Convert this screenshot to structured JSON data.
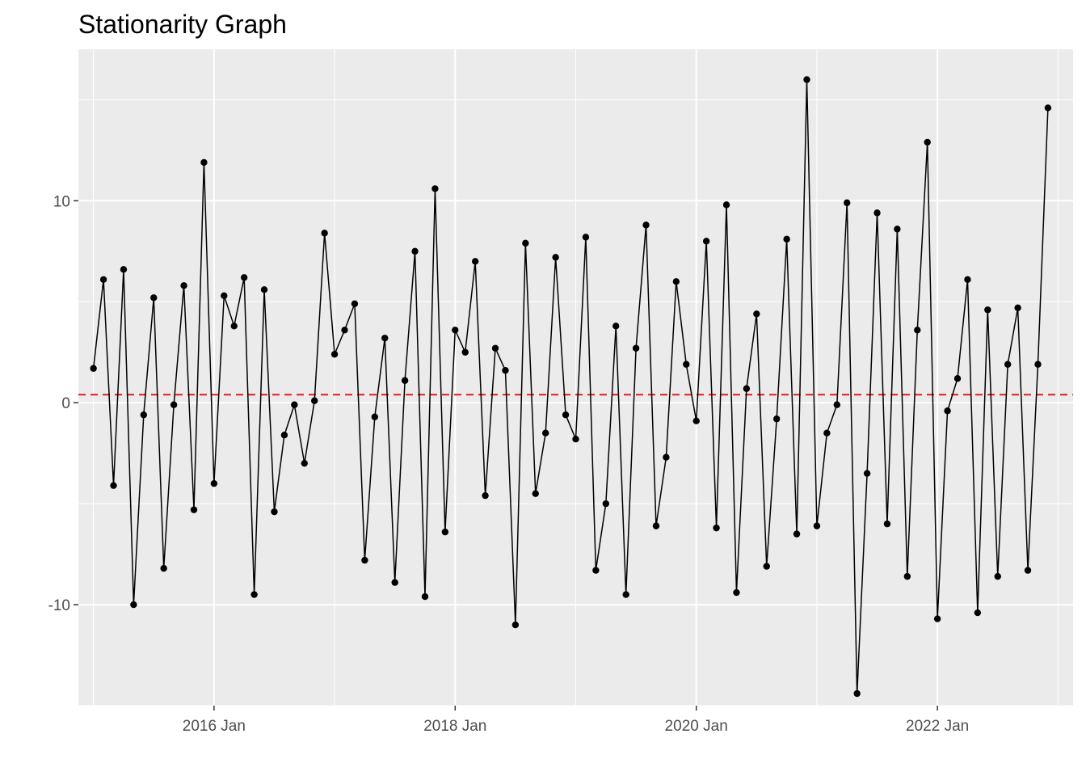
{
  "chart_data": {
    "type": "line",
    "title": "Stationarity Graph",
    "xlabel": "",
    "ylabel": "",
    "start_month": "2015-01",
    "x_ticks": [
      {
        "label": "2016 Jan",
        "month_index": 12
      },
      {
        "label": "2018 Jan",
        "month_index": 36
      },
      {
        "label": "2020 Jan",
        "month_index": 60
      },
      {
        "label": "2022 Jan",
        "month_index": 84
      }
    ],
    "y_ticks": [
      -10,
      0,
      10
    ],
    "ylim": [
      -15,
      17.5
    ],
    "xlim_months": [
      -1.5,
      97.5
    ],
    "grid": true,
    "reference_line": {
      "value": 0.4,
      "style": "dashed",
      "color": "#e41a1c"
    },
    "background": "#ebebeb",
    "series": [
      {
        "name": "value",
        "color": "#000000",
        "values": [
          1.7,
          6.1,
          -4.1,
          6.6,
          -10.0,
          -0.6,
          5.2,
          -8.2,
          -0.1,
          5.8,
          -5.3,
          11.9,
          -4.0,
          5.3,
          3.8,
          6.2,
          -9.5,
          5.6,
          -5.4,
          -1.6,
          -0.1,
          -3.0,
          0.1,
          8.4,
          2.4,
          3.6,
          4.9,
          -7.8,
          -0.7,
          3.2,
          -8.9,
          1.1,
          7.5,
          -9.6,
          10.6,
          -6.4,
          3.6,
          2.5,
          7.0,
          -4.6,
          2.7,
          1.6,
          -11.0,
          7.9,
          -4.5,
          -1.5,
          7.2,
          -0.6,
          -1.8,
          8.2,
          -8.3,
          -5.0,
          3.8,
          -9.5,
          2.7,
          8.8,
          -6.1,
          -2.7,
          6.0,
          1.9,
          -0.9,
          8.0,
          -6.2,
          9.8,
          -9.4,
          0.7,
          4.4,
          -8.1,
          -0.8,
          8.1,
          -6.5,
          16.0,
          -6.1,
          -1.5,
          -0.1,
          9.9,
          -14.4,
          -3.5,
          9.4,
          -6.0,
          8.6,
          -8.6,
          3.6,
          12.9,
          -10.7,
          -0.4,
          1.2,
          6.1,
          -10.4,
          4.6,
          -8.6,
          1.9,
          4.7,
          -8.3,
          1.9,
          14.6
        ]
      }
    ]
  }
}
